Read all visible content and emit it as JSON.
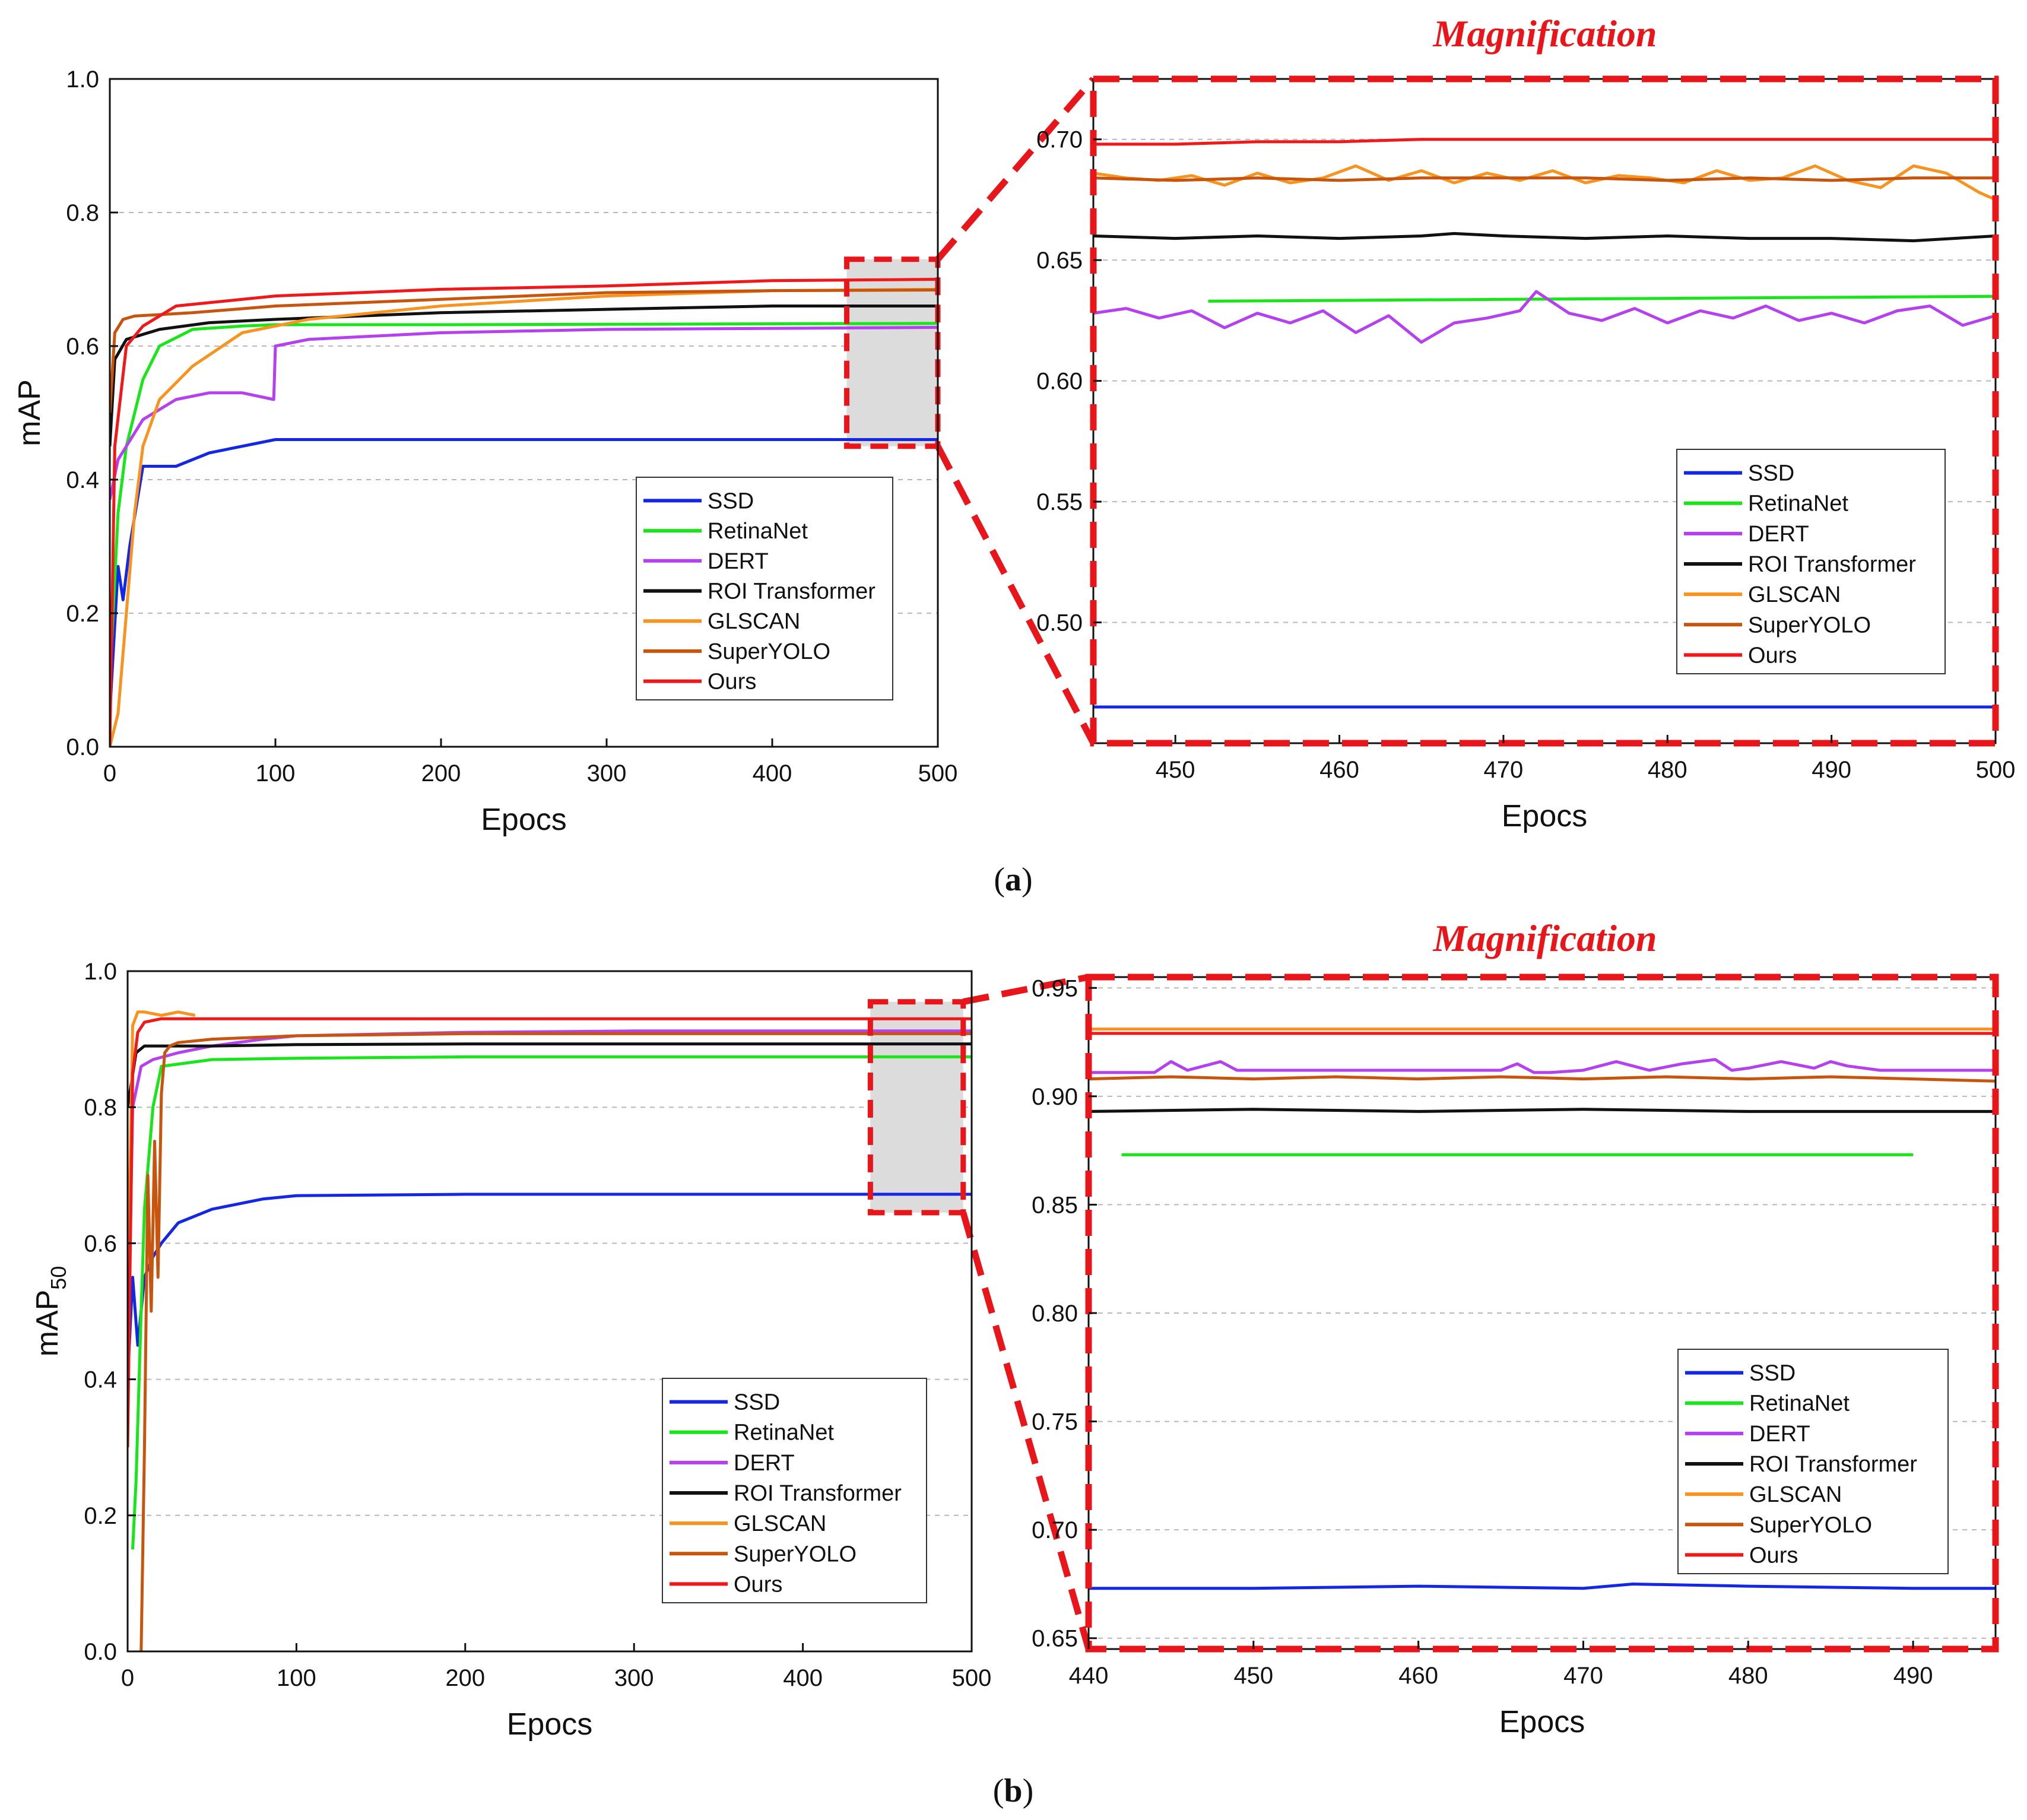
{
  "colors": {
    "SSD": "#1427e6",
    "RetinaNet": "#19e619",
    "DERT": "#b440f0",
    "ROI Transformer": "#111111",
    "GLSCAN": "#f7931e",
    "SuperYOLO": "#c8550e",
    "Ours": "#f01818",
    "magnify": "#e8161b",
    "highlight_fill": "#dcdcdc"
  },
  "panels": [
    {
      "label_prefix": "(",
      "label_letter": "a",
      "label_suffix": ")",
      "magnification_title": "Magnification"
    },
    {
      "label_prefix": "(",
      "label_letter": "b",
      "label_suffix": ")",
      "magnification_title": "Magnification"
    }
  ],
  "chart_data": [
    {
      "id": "a_main",
      "type": "line",
      "xlabel": "Epocs",
      "ylabel": "mAP",
      "ylabel_sub": "",
      "xlim": [
        0,
        500
      ],
      "ylim": [
        0.0,
        1.0
      ],
      "xticks": [
        0,
        100,
        200,
        300,
        400,
        500
      ],
      "yticks": [
        0.0,
        0.2,
        0.4,
        0.6,
        0.8,
        1.0
      ],
      "ytick_labels": [
        "0.0",
        "0.2",
        "0.4",
        "0.6",
        "0.8",
        "1.0"
      ],
      "zoom_region": {
        "x": [
          445,
          500
        ],
        "y": [
          0.45,
          0.73
        ]
      },
      "legend": [
        "SSD",
        "RetinaNet",
        "DERT",
        "ROI Transformer",
        "GLSCAN",
        "SuperYOLO",
        "Ours"
      ],
      "series": [
        {
          "name": "SSD",
          "x": [
            0,
            5,
            8,
            12,
            20,
            40,
            60,
            100,
            200,
            500
          ],
          "y": [
            0.05,
            0.27,
            0.22,
            0.3,
            0.42,
            0.42,
            0.44,
            0.46,
            0.46,
            0.46
          ]
        },
        {
          "name": "RetinaNet",
          "x": [
            0,
            5,
            10,
            20,
            30,
            50,
            80,
            100,
            200,
            500
          ],
          "y": [
            0.1,
            0.35,
            0.45,
            0.55,
            0.6,
            0.625,
            0.63,
            0.632,
            0.632,
            0.634
          ]
        },
        {
          "name": "DERT",
          "x": [
            0,
            5,
            20,
            40,
            60,
            80,
            99,
            100,
            120,
            200,
            300,
            500
          ],
          "y": [
            0.37,
            0.43,
            0.49,
            0.52,
            0.53,
            0.53,
            0.52,
            0.6,
            0.61,
            0.62,
            0.625,
            0.628
          ]
        },
        {
          "name": "ROI Transformer",
          "x": [
            0,
            3,
            10,
            30,
            60,
            100,
            200,
            300,
            400,
            500
          ],
          "y": [
            0.45,
            0.58,
            0.61,
            0.625,
            0.635,
            0.64,
            0.65,
            0.655,
            0.66,
            0.66
          ]
        },
        {
          "name": "GLSCAN",
          "x": [
            0,
            5,
            10,
            15,
            20,
            30,
            50,
            80,
            120,
            200,
            300,
            400,
            500
          ],
          "y": [
            0.0,
            0.05,
            0.2,
            0.35,
            0.45,
            0.52,
            0.57,
            0.62,
            0.64,
            0.66,
            0.675,
            0.683,
            0.685
          ]
        },
        {
          "name": "SuperYOLO",
          "x": [
            0,
            3,
            8,
            15,
            50,
            100,
            200,
            300,
            400,
            500
          ],
          "y": [
            0.5,
            0.62,
            0.64,
            0.645,
            0.65,
            0.66,
            0.67,
            0.68,
            0.683,
            0.684
          ]
        },
        {
          "name": "Ours",
          "x": [
            0,
            3,
            10,
            20,
            40,
            100,
            200,
            300,
            400,
            500
          ],
          "y": [
            0.0,
            0.45,
            0.6,
            0.63,
            0.66,
            0.675,
            0.685,
            0.69,
            0.698,
            0.7
          ]
        }
      ]
    },
    {
      "id": "a_zoom",
      "type": "line",
      "xlabel": "Epocs",
      "ylabel": "",
      "ylabel_sub": "",
      "xlim": [
        445,
        500
      ],
      "ylim": [
        0.45,
        0.725
      ],
      "xticks": [
        450,
        460,
        470,
        480,
        490,
        500
      ],
      "yticks": [
        0.5,
        0.55,
        0.6,
        0.65,
        0.7
      ],
      "ytick_labels": [
        "0.50",
        "0.55",
        "0.60",
        "0.65",
        "0.70"
      ],
      "legend": [
        "SSD",
        "RetinaNet",
        "DERT",
        "ROI Transformer",
        "GLSCAN",
        "SuperYOLO",
        "Ours"
      ],
      "series": [
        {
          "name": "SSD",
          "x": [
            445,
            455,
            465,
            475,
            485,
            495,
            500
          ],
          "y": [
            0.465,
            0.465,
            0.465,
            0.465,
            0.465,
            0.465,
            0.465
          ]
        },
        {
          "name": "RetinaNet",
          "x": [
            452,
            500
          ],
          "y": [
            0.633,
            0.635
          ]
        },
        {
          "name": "DERT",
          "x": [
            445,
            447,
            449,
            451,
            453,
            455,
            457,
            459,
            461,
            463,
            465,
            467,
            469,
            471,
            472,
            474,
            476,
            478,
            480,
            482,
            484,
            486,
            488,
            490,
            492,
            494,
            496,
            498,
            500
          ],
          "y": [
            0.628,
            0.63,
            0.626,
            0.629,
            0.622,
            0.628,
            0.624,
            0.629,
            0.62,
            0.627,
            0.616,
            0.624,
            0.626,
            0.629,
            0.637,
            0.628,
            0.625,
            0.63,
            0.624,
            0.629,
            0.626,
            0.631,
            0.625,
            0.628,
            0.624,
            0.629,
            0.631,
            0.623,
            0.627
          ]
        },
        {
          "name": "ROI Transformer",
          "x": [
            445,
            450,
            455,
            460,
            465,
            467,
            470,
            475,
            480,
            485,
            490,
            495,
            500
          ],
          "y": [
            0.66,
            0.659,
            0.66,
            0.659,
            0.66,
            0.661,
            0.66,
            0.659,
            0.66,
            0.659,
            0.659,
            0.658,
            0.66
          ]
        },
        {
          "name": "GLSCAN",
          "x": [
            445,
            447,
            449,
            451,
            453,
            455,
            457,
            459,
            461,
            463,
            465,
            467,
            469,
            471,
            473,
            475,
            477,
            479,
            481,
            483,
            485,
            487,
            489,
            491,
            493,
            495,
            497,
            499,
            500
          ],
          "y": [
            0.686,
            0.684,
            0.683,
            0.685,
            0.681,
            0.686,
            0.682,
            0.684,
            0.689,
            0.683,
            0.687,
            0.682,
            0.686,
            0.683,
            0.687,
            0.682,
            0.685,
            0.684,
            0.682,
            0.687,
            0.683,
            0.684,
            0.689,
            0.683,
            0.68,
            0.689,
            0.686,
            0.678,
            0.675
          ]
        },
        {
          "name": "SuperYOLO",
          "x": [
            445,
            450,
            455,
            460,
            465,
            470,
            475,
            480,
            485,
            490,
            495,
            500
          ],
          "y": [
            0.684,
            0.683,
            0.684,
            0.683,
            0.684,
            0.684,
            0.684,
            0.683,
            0.684,
            0.683,
            0.684,
            0.684
          ]
        },
        {
          "name": "Ours",
          "x": [
            445,
            450,
            455,
            460,
            465,
            470,
            475,
            480,
            485,
            490,
            495,
            500
          ],
          "y": [
            0.698,
            0.698,
            0.699,
            0.699,
            0.7,
            0.7,
            0.7,
            0.7,
            0.7,
            0.7,
            0.7,
            0.7
          ]
        }
      ]
    },
    {
      "id": "b_main",
      "type": "line",
      "xlabel": "Epocs",
      "ylabel": "mAP",
      "ylabel_sub": "50",
      "xlim": [
        0,
        500
      ],
      "ylim": [
        0.0,
        1.0
      ],
      "xticks": [
        0,
        100,
        200,
        300,
        400,
        500
      ],
      "yticks": [
        0.0,
        0.2,
        0.4,
        0.6,
        0.8,
        1.0
      ],
      "ytick_labels": [
        "0.0",
        "0.2",
        "0.4",
        "0.6",
        "0.8",
        "1.0"
      ],
      "zoom_region": {
        "x": [
          440,
          495
        ],
        "y": [
          0.645,
          0.955
        ]
      },
      "legend": [
        "SSD",
        "RetinaNet",
        "DERT",
        "ROI Transformer",
        "GLSCAN",
        "SuperYOLO",
        "Ours"
      ],
      "series": [
        {
          "name": "SSD",
          "x": [
            0,
            3,
            6,
            10,
            15,
            20,
            30,
            50,
            80,
            100,
            200,
            500
          ],
          "y": [
            0.4,
            0.55,
            0.45,
            0.55,
            0.58,
            0.6,
            0.63,
            0.65,
            0.665,
            0.67,
            0.672,
            0.672
          ]
        },
        {
          "name": "RetinaNet",
          "x": [
            3,
            5,
            8,
            10,
            15,
            20,
            50,
            100,
            200,
            500
          ],
          "y": [
            0.15,
            0.25,
            0.5,
            0.65,
            0.8,
            0.86,
            0.87,
            0.872,
            0.874,
            0.874
          ]
        },
        {
          "name": "DERT",
          "x": [
            0,
            3,
            8,
            15,
            30,
            50,
            80,
            100,
            200,
            300,
            500
          ],
          "y": [
            0.4,
            0.8,
            0.86,
            0.87,
            0.88,
            0.89,
            0.9,
            0.905,
            0.91,
            0.912,
            0.912
          ]
        },
        {
          "name": "ROI Transformer",
          "x": [
            0,
            5,
            10,
            50,
            100,
            200,
            500
          ],
          "y": [
            0.8,
            0.88,
            0.89,
            0.89,
            0.892,
            0.893,
            0.893
          ]
        },
        {
          "name": "GLSCAN",
          "x": [
            0,
            3,
            6,
            10,
            20,
            30,
            40
          ],
          "y": [
            0.5,
            0.92,
            0.94,
            0.94,
            0.935,
            0.94,
            0.935
          ]
        },
        {
          "name": "SuperYOLO",
          "x": [
            8,
            10,
            12,
            14,
            16,
            18,
            20,
            22,
            25,
            30,
            50,
            100,
            200,
            500
          ],
          "y": [
            0.0,
            0.3,
            0.7,
            0.5,
            0.75,
            0.55,
            0.82,
            0.88,
            0.89,
            0.895,
            0.9,
            0.905,
            0.908,
            0.908
          ]
        },
        {
          "name": "Ours",
          "x": [
            0,
            3,
            6,
            10,
            20,
            50,
            100,
            500
          ],
          "y": [
            0.3,
            0.85,
            0.91,
            0.925,
            0.93,
            0.93,
            0.93,
            0.93
          ]
        }
      ]
    },
    {
      "id": "b_zoom",
      "type": "line",
      "xlabel": "Epocs",
      "ylabel": "",
      "ylabel_sub": "",
      "xlim": [
        440,
        495
      ],
      "ylim": [
        0.645,
        0.955
      ],
      "xticks": [
        440,
        450,
        460,
        470,
        480,
        490
      ],
      "yticks": [
        0.65,
        0.7,
        0.75,
        0.8,
        0.85,
        0.9,
        0.95
      ],
      "ytick_labels": [
        "0.65",
        "0.70",
        "0.75",
        "0.80",
        "0.85",
        "0.90",
        "0.95"
      ],
      "legend": [
        "SSD",
        "RetinaNet",
        "DERT",
        "ROI Transformer",
        "GLSCAN",
        "SuperYOLO",
        "Ours"
      ],
      "series": [
        {
          "name": "SSD",
          "x": [
            440,
            450,
            460,
            470,
            473,
            480,
            490,
            495
          ],
          "y": [
            0.673,
            0.673,
            0.674,
            0.673,
            0.675,
            0.674,
            0.673,
            0.673
          ]
        },
        {
          "name": "RetinaNet",
          "x": [
            442,
            490
          ],
          "y": [
            0.873,
            0.873
          ]
        },
        {
          "name": "DERT",
          "x": [
            440,
            442,
            444,
            445,
            446,
            447,
            448,
            449,
            450,
            455,
            460,
            465,
            466,
            467,
            468,
            470,
            472,
            473,
            474,
            476,
            478,
            479,
            480,
            482,
            484,
            485,
            486,
            488,
            490,
            495
          ],
          "y": [
            0.911,
            0.911,
            0.911,
            0.916,
            0.912,
            0.914,
            0.916,
            0.912,
            0.912,
            0.912,
            0.912,
            0.912,
            0.915,
            0.911,
            0.911,
            0.912,
            0.916,
            0.914,
            0.912,
            0.915,
            0.917,
            0.912,
            0.913,
            0.916,
            0.913,
            0.916,
            0.914,
            0.912,
            0.912,
            0.912
          ]
        },
        {
          "name": "ROI Transformer",
          "x": [
            440,
            450,
            460,
            470,
            480,
            490,
            495
          ],
          "y": [
            0.893,
            0.894,
            0.893,
            0.894,
            0.893,
            0.893,
            0.893
          ]
        },
        {
          "name": "GLSCAN",
          "x": [
            440,
            495
          ],
          "y": [
            0.931,
            0.931
          ]
        },
        {
          "name": "SuperYOLO",
          "x": [
            440,
            445,
            450,
            455,
            460,
            465,
            470,
            475,
            480,
            485,
            490,
            495
          ],
          "y": [
            0.908,
            0.909,
            0.908,
            0.909,
            0.908,
            0.909,
            0.908,
            0.909,
            0.908,
            0.909,
            0.908,
            0.907
          ]
        },
        {
          "name": "Ours",
          "x": [
            440,
            495
          ],
          "y": [
            0.929,
            0.929
          ]
        }
      ]
    }
  ]
}
